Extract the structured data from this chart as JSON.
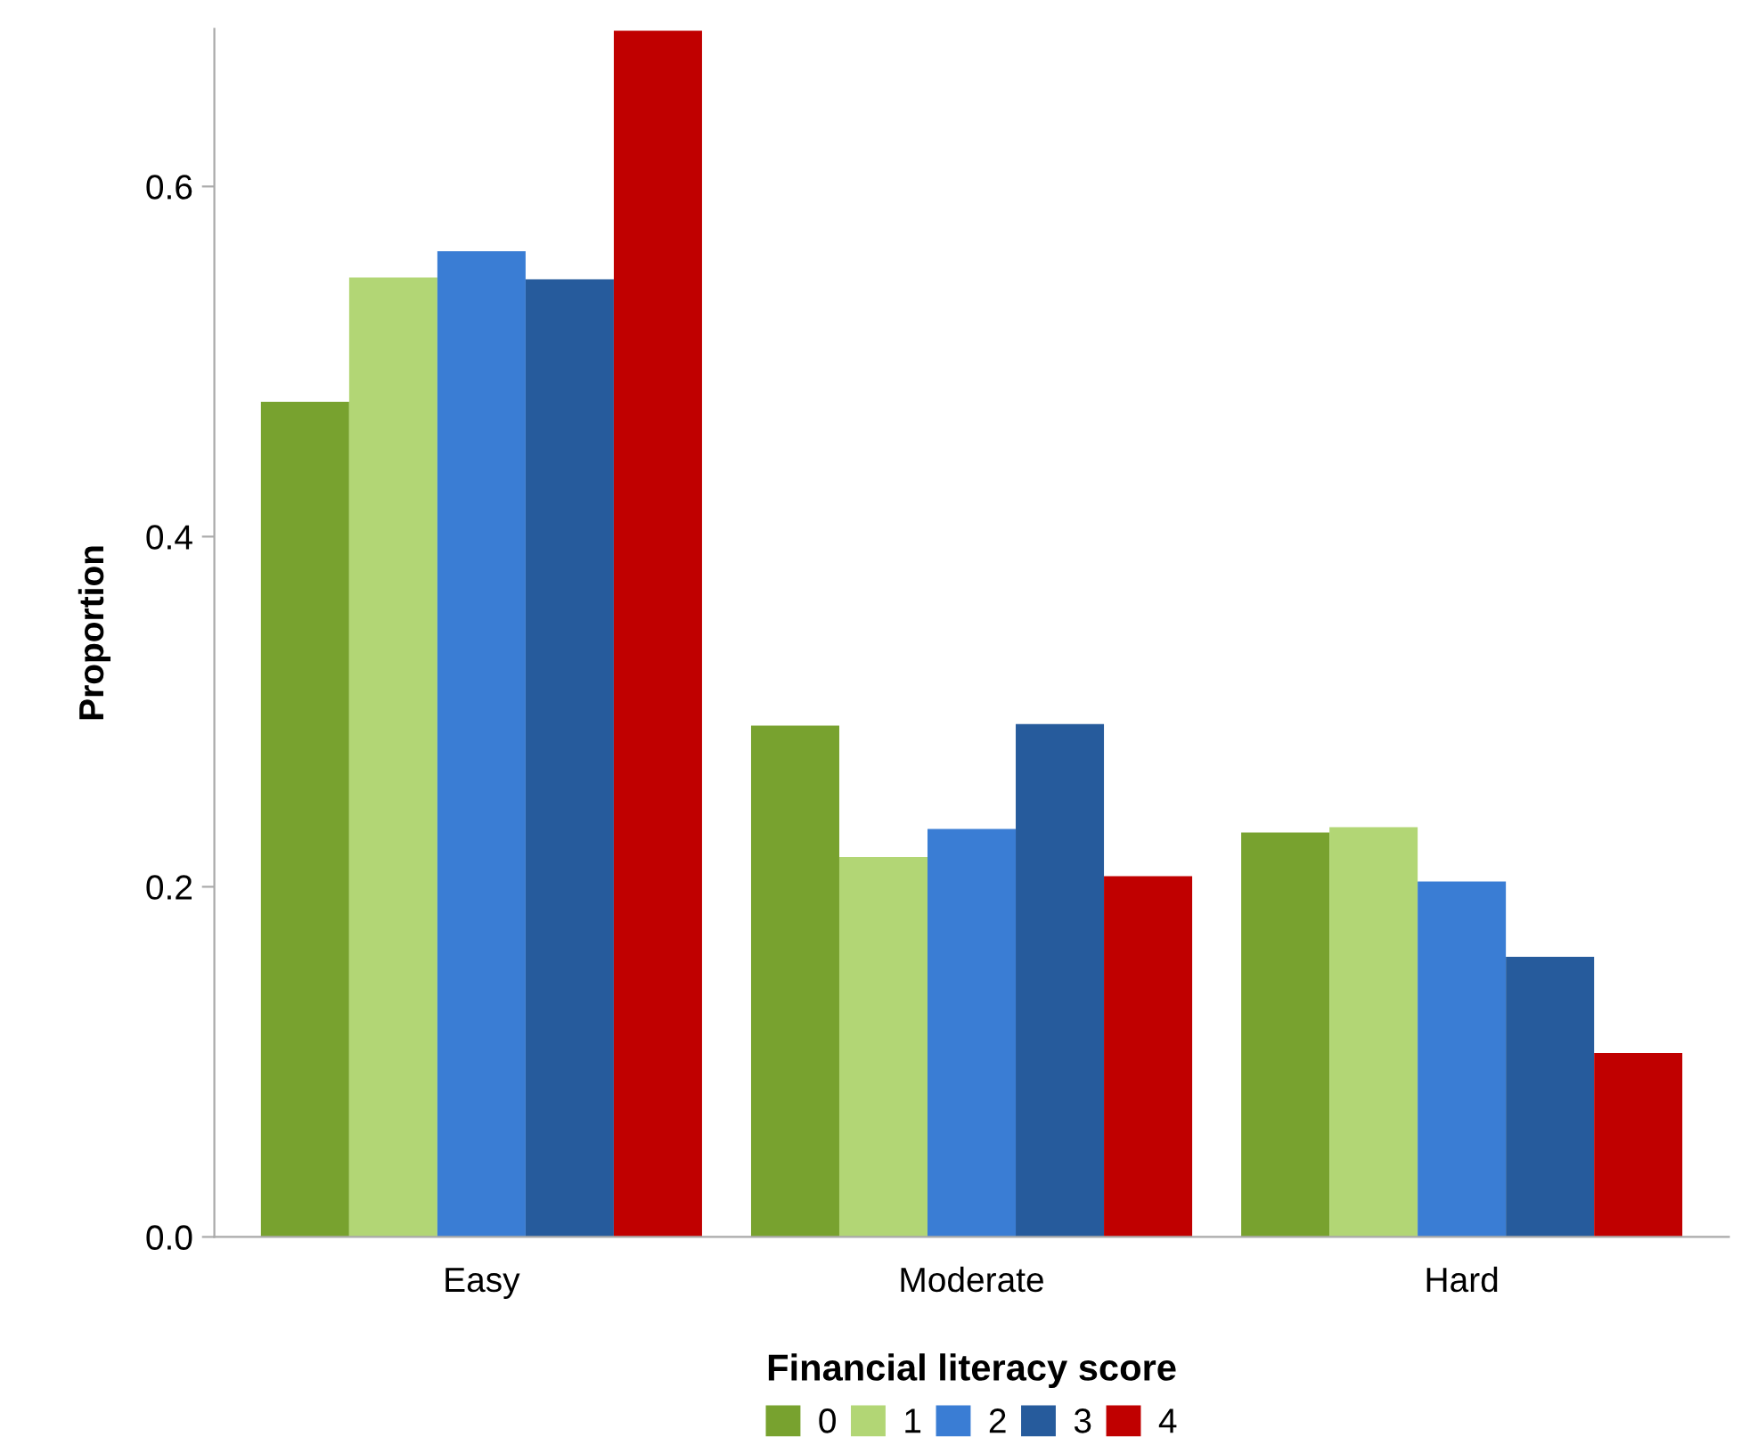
{
  "chart_data": {
    "type": "bar",
    "ylabel": "Proportion",
    "legend_title": "Financial literacy score",
    "categories": [
      "Easy",
      "Moderate",
      "Hard"
    ],
    "series": [
      {
        "name": "0",
        "color": "#78a22f",
        "values": [
          0.477,
          0.292,
          0.231
        ]
      },
      {
        "name": "1",
        "color": "#b2d675",
        "values": [
          0.548,
          0.217,
          0.234
        ]
      },
      {
        "name": "2",
        "color": "#3a7dd4",
        "values": [
          0.563,
          0.233,
          0.203
        ]
      },
      {
        "name": "3",
        "color": "#265b9c",
        "values": [
          0.547,
          0.293,
          0.16
        ]
      },
      {
        "name": "4",
        "color": "#c00000",
        "values": [
          0.689,
          0.206,
          0.105
        ]
      }
    ],
    "ylim": [
      0,
      0.69
    ],
    "yticks": [
      {
        "value": 0,
        "label": "0.0"
      },
      {
        "value": 0.2,
        "label": "0.2"
      },
      {
        "value": 0.4,
        "label": "0.4"
      },
      {
        "value": 0.6,
        "label": "0.6"
      }
    ],
    "grid": false,
    "legend": "bottom"
  }
}
